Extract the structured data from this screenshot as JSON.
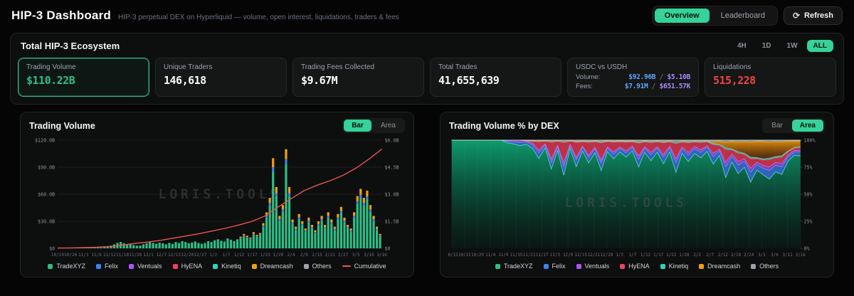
{
  "header": {
    "title": "HIP-3 Dashboard",
    "subtitle": "HIP-3 perpetual DEX on Hyperliquid — volume, open interest, liquidations, traders & fees",
    "nav": {
      "overview": "Overview",
      "leaderboard": "Leaderboard",
      "refresh": "Refresh"
    }
  },
  "ecosystem": {
    "title": "Total HIP-3 Ecosystem",
    "timeranges": [
      "4H",
      "1D",
      "1W",
      "ALL"
    ],
    "active_timerange": "ALL",
    "stats": [
      {
        "label": "Trading Volume",
        "value": "$110.22B"
      },
      {
        "label": "Unique Traders",
        "value": "146,618"
      },
      {
        "label": "Trading Fees Collected",
        "value": "$9.67M"
      },
      {
        "label": "Total Trades",
        "value": "41,655,639"
      },
      {
        "label": "USDC vs USDH",
        "rows": [
          {
            "name": "Volume:",
            "usdc": "$92.96B",
            "sep": "/",
            "usdh": "$5.10B"
          },
          {
            "name": "Fees:",
            "usdc": "$7.91M",
            "sep": "/",
            "usdh": "$651.57K"
          }
        ]
      },
      {
        "label": "Liquidations",
        "value": "515,228"
      }
    ]
  },
  "watermark": "LORIS.TOOLS",
  "colors": {
    "accent": "#34d399",
    "usdc_blue": "#60a5fa",
    "usdh_purple": "#a78bfa",
    "liquidation_red": "#ef4444",
    "cumulative_red": "#ef5350"
  },
  "chart_data": [
    {
      "type": "bar",
      "title": "Trading Volume",
      "toggle": {
        "options": [
          "Bar",
          "Area"
        ],
        "active": "Bar"
      },
      "y_left": {
        "labels": [
          "$120.0B",
          "$90.0B",
          "$60.0B",
          "$30.0B",
          "$0"
        ],
        "max": 120
      },
      "y_right": {
        "labels": [
          "$6.0B",
          "$4.5B",
          "$3.0B",
          "$1.5B",
          "$0"
        ],
        "max": 6
      },
      "x_ticks": [
        "10/19",
        "10/26",
        "11/1",
        "11/6",
        "11/12",
        "11/18",
        "11/26",
        "12/1",
        "12/7",
        "12/13",
        "12/20",
        "12/27",
        "1/2",
        "1/7",
        "1/12",
        "1/17",
        "1/23",
        "1/29",
        "2/4",
        "2/9",
        "2/15",
        "2/21",
        "2/27",
        "3/5",
        "3/10",
        "3/16"
      ],
      "daily_volume_b": [
        0.02,
        0.01,
        0.02,
        0.03,
        0.02,
        0.01,
        0.02,
        0.02,
        0.03,
        0.02,
        0.04,
        0.03,
        0.05,
        0.04,
        0.06,
        0.1,
        0.15,
        0.22,
        0.3,
        0.35,
        0.28,
        0.2,
        0.25,
        0.18,
        0.15,
        0.15,
        0.22,
        0.28,
        0.35,
        0.3,
        0.25,
        0.32,
        0.28,
        0.22,
        0.3,
        0.25,
        0.35,
        0.3,
        0.4,
        0.35,
        0.28,
        0.32,
        0.38,
        0.3,
        0.25,
        0.3,
        0.4,
        0.35,
        0.45,
        0.5,
        0.42,
        0.38,
        0.55,
        0.48,
        0.4,
        0.5,
        0.65,
        0.8,
        0.7,
        0.6,
        0.9,
        0.75,
        0.85,
        1.4,
        2.0,
        2.8,
        5.0,
        3.4,
        1.8,
        2.4,
        5.5,
        3.4,
        1.6,
        1.2,
        1.9,
        1.5,
        1.1,
        1.7,
        1.3,
        1.0,
        1.5,
        1.8,
        1.3,
        2.0,
        1.6,
        1.2,
        1.9,
        2.3,
        1.7,
        1.3,
        1.1,
        2.0,
        2.9,
        3.3,
        2.8,
        3.2,
        2.4,
        1.8,
        1.2,
        0.8
      ],
      "cumulative_b": [
        0.3,
        0.5,
        0.8,
        1.2,
        2.0,
        3.5,
        5.5,
        7.0,
        9.0,
        11.5,
        14.0,
        16.5,
        19.5,
        22.5,
        26.0,
        30.0,
        36.0,
        46.0,
        55.0,
        64.0,
        70.0,
        75.0,
        81.0,
        89.0,
        99.0,
        110.2
      ],
      "legend": [
        {
          "name": "TradeXYZ",
          "color": "#2ebd85"
        },
        {
          "name": "Felix",
          "color": "#3b82f6"
        },
        {
          "name": "Ventuals",
          "color": "#a855f7"
        },
        {
          "name": "HyENA",
          "color": "#f43f5e"
        },
        {
          "name": "Kinetiq",
          "color": "#2dd4bf"
        },
        {
          "name": "Dreamcash",
          "color": "#f59e0b"
        },
        {
          "name": "Others",
          "color": "#9ca3af"
        },
        {
          "name": "Cumulative",
          "color": "#ef5350",
          "style": "line"
        }
      ]
    },
    {
      "type": "area",
      "title": "Trading Volume % by DEX",
      "toggle": {
        "options": [
          "Bar",
          "Area"
        ],
        "active": "Area"
      },
      "y_right": {
        "labels": [
          "100%",
          "75%",
          "50%",
          "25%",
          "0%"
        ],
        "max": 100
      },
      "x_ticks": [
        "10/15",
        "10/22",
        "10/29",
        "11/4",
        "11/9",
        "11/15",
        "11/21",
        "11/27",
        "12/3",
        "12/9",
        "12/15",
        "12/21",
        "12/28",
        "1/3",
        "1/7",
        "1/12",
        "1/17",
        "1/22",
        "1/28",
        "2/2",
        "2/7",
        "2/12",
        "2/18",
        "2/24",
        "3/1",
        "3/6",
        "3/11",
        "3/16"
      ],
      "base": {
        "name": "TradeXYZ",
        "color": "#2ebd85",
        "stroke": "#6ee7b7"
      },
      "series_top": [
        {
          "name": "Felix",
          "color": "#3b82f6",
          "stroke": "#60a5fa",
          "values": [
            0,
            0,
            0,
            0,
            0,
            0,
            0,
            0,
            0,
            1.5,
            2,
            3,
            2,
            3,
            5,
            2.5,
            6,
            3,
            8,
            2.5,
            6,
            3,
            5,
            3.5,
            7,
            3,
            4.5,
            3,
            4,
            3,
            7,
            3.5,
            5.5,
            3.5,
            6,
            3.5,
            9,
            4,
            6,
            4.5,
            5,
            3.5,
            7,
            4,
            10,
            5,
            8,
            5.5,
            9,
            5,
            6,
            8,
            6,
            7,
            4,
            3,
            3.5
          ]
        },
        {
          "name": "Ventuals",
          "color": "#a855f7",
          "stroke": "#c084fc",
          "values": [
            0,
            0,
            0,
            0,
            0,
            0,
            0,
            0,
            0,
            1,
            1.5,
            2,
            1.2,
            1.8,
            2.5,
            1.2,
            3,
            1.5,
            3.5,
            1.2,
            2.5,
            1.5,
            2,
            1.5,
            2.5,
            1.2,
            2,
            1.3,
            1.8,
            1.3,
            3,
            1.5,
            2.2,
            1.5,
            2.5,
            1.5,
            3.5,
            1.8,
            2.5,
            2,
            2.2,
            1.6,
            3,
            1.8,
            4,
            2.2,
            3.2,
            2.4,
            3.6,
            2.2,
            2.6,
            3.2,
            2.6,
            3,
            1.8,
            1.4,
            1.6
          ]
        },
        {
          "name": "HyENA",
          "color": "#f43f5e",
          "stroke": "#fb7185",
          "values": [
            0,
            0,
            0,
            0,
            0,
            0,
            0,
            0,
            0,
            0,
            0,
            0,
            0,
            2,
            8,
            2.5,
            16,
            4,
            19,
            3,
            14,
            4,
            12,
            5,
            16,
            5,
            9,
            5,
            8,
            4,
            12,
            4.5,
            9,
            4.5,
            11,
            4,
            14,
            4.5,
            9,
            4,
            7,
            3.5,
            8,
            3.5,
            12,
            4,
            8,
            4,
            9,
            3.5,
            5,
            7,
            4.5,
            6,
            3,
            2.2,
            2.8
          ]
        },
        {
          "name": "Kinetiq",
          "color": "#2dd4bf",
          "stroke": "#5eead4",
          "values": [
            0,
            0,
            0,
            0,
            0,
            0,
            0,
            0,
            0,
            0,
            0,
            0,
            0,
            0,
            0,
            0,
            0,
            0,
            0,
            0,
            0.6,
            0.5,
            0.8,
            0.6,
            1,
            0.5,
            0.8,
            0.6,
            0.8,
            0.6,
            1.2,
            0.7,
            1,
            0.7,
            1,
            0.7,
            1.4,
            0.8,
            1.1,
            0.8,
            1,
            0.7,
            1.2,
            0.8,
            1.6,
            0.9,
            1.3,
            1,
            1.4,
            0.9,
            1.1,
            1.3,
            1,
            1.2,
            0.8,
            0.6,
            0.7
          ]
        },
        {
          "name": "Dreamcash",
          "color": "#f59e0b",
          "stroke": "#fbbf24",
          "values": [
            0,
            0,
            0,
            0,
            0,
            0,
            0,
            0,
            0,
            0,
            0,
            0,
            0,
            0,
            0,
            0,
            0,
            0,
            0,
            0,
            0,
            0,
            0,
            0,
            0,
            0,
            0,
            0,
            0,
            0,
            0,
            0,
            0,
            0,
            0,
            0,
            0,
            0,
            0,
            0,
            0,
            0,
            1.5,
            3,
            5,
            7,
            9,
            11,
            14,
            15,
            16,
            15,
            14,
            13,
            9,
            6,
            5
          ]
        },
        {
          "name": "Others",
          "color": "#9ca3af",
          "stroke": "#d1d5db",
          "values": [
            0,
            0,
            0,
            0,
            0,
            0,
            0,
            0,
            0,
            0,
            0,
            0,
            0.5,
            0.8,
            1.2,
            0.7,
            1.5,
            0.8,
            1.8,
            0.7,
            1.3,
            0.8,
            1.1,
            0.8,
            1.4,
            0.7,
            1,
            0.8,
            1,
            0.8,
            1.5,
            0.8,
            1.2,
            0.8,
            1.3,
            0.8,
            1.7,
            0.9,
            1.2,
            0.9,
            1.1,
            0.8,
            1.4,
            0.9,
            1.8,
            1,
            1.5,
            1.1,
            1.6,
            1,
            1.2,
            1.5,
            1.1,
            1.3,
            0.9,
            0.7,
            0.8
          ]
        }
      ],
      "legend": [
        {
          "name": "TradeXYZ",
          "color": "#2ebd85"
        },
        {
          "name": "Felix",
          "color": "#3b82f6"
        },
        {
          "name": "Ventuals",
          "color": "#a855f7"
        },
        {
          "name": "HyENA",
          "color": "#f43f5e"
        },
        {
          "name": "Kinetiq",
          "color": "#2dd4bf"
        },
        {
          "name": "Dreamcash",
          "color": "#f59e0b"
        },
        {
          "name": "Others",
          "color": "#9ca3af"
        }
      ]
    }
  ]
}
